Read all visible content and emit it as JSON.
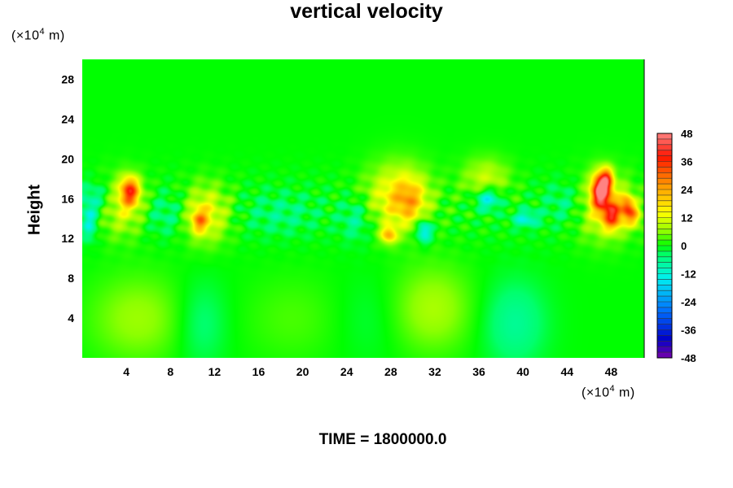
{
  "chart_data": {
    "type": "heatmap",
    "title": "vertical velocity",
    "ylabel": "Height",
    "y_unit_prefix": "(×10",
    "y_unit_exp": "4",
    "y_unit_suffix": " m)",
    "x_unit_prefix": "(×10",
    "x_unit_exp": "4",
    "x_unit_suffix": " m)",
    "xlim": [
      0,
      51
    ],
    "ylim": [
      0,
      30
    ],
    "x_ticks": [
      "4",
      "8",
      "12",
      "16",
      "20",
      "24",
      "28",
      "32",
      "36",
      "40",
      "44",
      "48"
    ],
    "x_tick_values": [
      4,
      8,
      12,
      16,
      20,
      24,
      28,
      32,
      36,
      40,
      44,
      48
    ],
    "y_ticks": [
      "4",
      "8",
      "12",
      "16",
      "20",
      "24",
      "28"
    ],
    "y_tick_values": [
      4,
      8,
      12,
      16,
      20,
      24,
      28
    ],
    "colorbar": {
      "range": [
        -48,
        48
      ],
      "levels": 40,
      "labels": [
        "48",
        "36",
        "24",
        "12",
        "0",
        "-12",
        "-24",
        "-36",
        "-48"
      ],
      "label_values": [
        48,
        36,
        24,
        12,
        0,
        -12,
        -24,
        -36,
        -48
      ]
    },
    "features": [
      {
        "x": 4.3,
        "y": 16.8,
        "value": 30,
        "sx": 0.6,
        "sy": 1.0
      },
      {
        "x": 3.6,
        "y": 15.3,
        "value": 12,
        "sx": 1.6,
        "sy": 2.0
      },
      {
        "x": 11.2,
        "y": 14.5,
        "value": 14,
        "sx": 1.5,
        "sy": 2.0
      },
      {
        "x": 10.6,
        "y": 13.8,
        "value": 18,
        "sx": 0.5,
        "sy": 0.8
      },
      {
        "x": 28.6,
        "y": 16.2,
        "value": 16,
        "sx": 2.0,
        "sy": 2.3
      },
      {
        "x": 29.7,
        "y": 15.8,
        "value": 12,
        "sx": 1.0,
        "sy": 1.5
      },
      {
        "x": 27.8,
        "y": 12.4,
        "value": 20,
        "sx": 0.5,
        "sy": 0.6
      },
      {
        "x": 36.6,
        "y": 18.0,
        "value": 10,
        "sx": 1.5,
        "sy": 1.5
      },
      {
        "x": 47.0,
        "y": 16.8,
        "value": 44,
        "sx": 0.55,
        "sy": 1.2
      },
      {
        "x": 47.6,
        "y": 18.0,
        "value": 24,
        "sx": 0.4,
        "sy": 0.8
      },
      {
        "x": 48.1,
        "y": 14.4,
        "value": 28,
        "sx": 0.6,
        "sy": 1.0
      },
      {
        "x": 49.4,
        "y": 15.3,
        "value": 22,
        "sx": 0.4,
        "sy": 0.8
      },
      {
        "x": 50.0,
        "y": 14.3,
        "value": 18,
        "sx": 0.5,
        "sy": 0.8
      },
      {
        "x": 47.3,
        "y": 15.2,
        "value": 14,
        "sx": 1.8,
        "sy": 2.2
      },
      {
        "x": 1.2,
        "y": 16.0,
        "value": -9,
        "sx": 1.2,
        "sy": 1.2
      },
      {
        "x": 0.6,
        "y": 13.6,
        "value": -12,
        "sx": 0.5,
        "sy": 1.2
      },
      {
        "x": 7.5,
        "y": 14.5,
        "value": -6,
        "sx": 1.5,
        "sy": 1.5
      },
      {
        "x": 36.8,
        "y": 16.0,
        "value": -16,
        "sx": 0.8,
        "sy": 0.8
      },
      {
        "x": 40.2,
        "y": 14.0,
        "value": -12,
        "sx": 0.8,
        "sy": 0.6
      },
      {
        "x": 31.0,
        "y": 12.8,
        "value": -18,
        "sx": 0.5,
        "sy": 0.8
      },
      {
        "x": 18.0,
        "y": 14.5,
        "value": -5,
        "sx": 2.5,
        "sy": 1.5
      },
      {
        "x": 44.0,
        "y": 15.5,
        "value": -6,
        "sx": 1.5,
        "sy": 1.5
      },
      {
        "x": 24.8,
        "y": 14.0,
        "value": -7,
        "sx": 1.0,
        "sy": 1.5
      },
      {
        "x": 5.0,
        "y": 4.0,
        "value": 7,
        "sx": 3.0,
        "sy": 3.0
      },
      {
        "x": 10.8,
        "y": 3.5,
        "value": -5,
        "sx": 1.6,
        "sy": 3.0
      },
      {
        "x": 19.0,
        "y": 4.0,
        "value": 3,
        "sx": 3.0,
        "sy": 3.0
      },
      {
        "x": 31.8,
        "y": 5.0,
        "value": 8,
        "sx": 2.5,
        "sy": 3.0
      },
      {
        "x": 39.2,
        "y": 3.5,
        "value": -7,
        "sx": 2.0,
        "sy": 3.0
      },
      {
        "x": 26.0,
        "y": 4.0,
        "value": -2,
        "sx": 2.0,
        "sy": 3.0
      }
    ],
    "footer_label": "TIME = 1800000.0"
  }
}
